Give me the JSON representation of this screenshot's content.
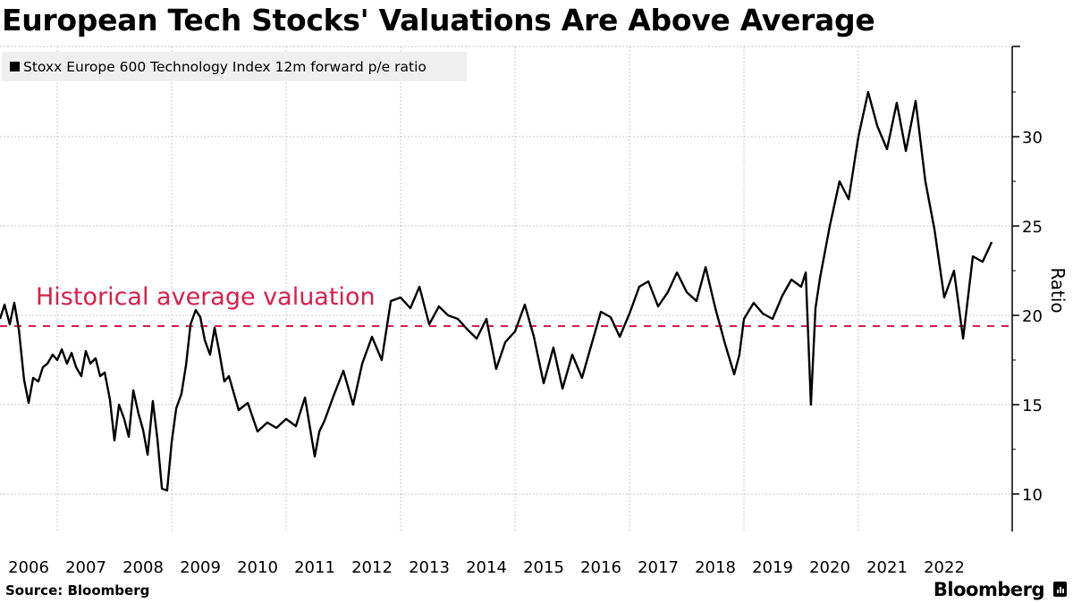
{
  "title": "European Tech Stocks' Valuations Are Above Average",
  "legend": {
    "label": "Stoxx Europe 600 Technology Index 12m forward p/e ratio",
    "swatch_color": "#000000"
  },
  "footer": {
    "source": "Source: Bloomberg",
    "brand": "Bloomberg",
    "brand_icon": "bloomberg-chart-icon"
  },
  "chart_data": {
    "type": "line",
    "title": "European Tech Stocks' Valuations Are Above Average",
    "xlabel": "",
    "ylabel": "Ratio",
    "xlim": [
      2006.0,
      2023.4
    ],
    "ylim": [
      8,
      33.5
    ],
    "y_ticks": [
      10,
      15,
      20,
      25,
      30
    ],
    "x_ticks": [
      "2006",
      "2007",
      "2008",
      "2009",
      "2010",
      "2011",
      "2012",
      "2013",
      "2014",
      "2015",
      "2016",
      "2017",
      "2018",
      "2019",
      "2020",
      "2021",
      "2022"
    ],
    "grid": true,
    "legend_position": "top-left",
    "line_color": "#000000",
    "annotations": [
      {
        "type": "hline",
        "y": 19.4,
        "style": "dashed",
        "color": "#d6204a",
        "label": "Historical average valuation"
      }
    ],
    "series": [
      {
        "name": "Stoxx Europe 600 Technology Index 12m forward p/e ratio",
        "x": [
          2006.0,
          2006.08,
          2006.17,
          2006.25,
          2006.33,
          2006.42,
          2006.5,
          2006.58,
          2006.67,
          2006.75,
          2006.83,
          2006.92,
          2007.0,
          2007.08,
          2007.17,
          2007.25,
          2007.33,
          2007.42,
          2007.5,
          2007.58,
          2007.67,
          2007.75,
          2007.83,
          2007.92,
          2008.0,
          2008.08,
          2008.17,
          2008.25,
          2008.33,
          2008.42,
          2008.5,
          2008.58,
          2008.67,
          2008.75,
          2008.83,
          2008.92,
          2009.0,
          2009.08,
          2009.17,
          2009.25,
          2009.33,
          2009.42,
          2009.5,
          2009.58,
          2009.67,
          2009.75,
          2009.83,
          2009.92,
          2010.0,
          2010.17,
          2010.33,
          2010.5,
          2010.67,
          2010.83,
          2011.0,
          2011.17,
          2011.33,
          2011.5,
          2011.58,
          2011.67,
          2011.83,
          2012.0,
          2012.17,
          2012.33,
          2012.5,
          2012.67,
          2012.83,
          2013.0,
          2013.17,
          2013.33,
          2013.5,
          2013.67,
          2013.83,
          2014.0,
          2014.17,
          2014.33,
          2014.5,
          2014.67,
          2014.83,
          2015.0,
          2015.17,
          2015.33,
          2015.5,
          2015.67,
          2015.83,
          2016.0,
          2016.17,
          2016.33,
          2016.5,
          2016.67,
          2016.83,
          2017.0,
          2017.17,
          2017.33,
          2017.5,
          2017.67,
          2017.83,
          2018.0,
          2018.17,
          2018.33,
          2018.5,
          2018.67,
          2018.83,
          2018.92,
          2019.0,
          2019.17,
          2019.33,
          2019.5,
          2019.67,
          2019.83,
          2020.0,
          2020.08,
          2020.17,
          2020.25,
          2020.33,
          2020.5,
          2020.67,
          2020.83,
          2021.0,
          2021.17,
          2021.33,
          2021.5,
          2021.67,
          2021.83,
          2022.0,
          2022.17,
          2022.33,
          2022.5,
          2022.67,
          2022.83,
          2023.0,
          2023.17,
          2023.33
        ],
        "y": [
          19.8,
          20.6,
          19.5,
          20.7,
          19.2,
          16.4,
          15.1,
          16.5,
          16.3,
          17.1,
          17.3,
          17.8,
          17.5,
          18.1,
          17.3,
          17.9,
          17.1,
          16.6,
          18.0,
          17.3,
          17.6,
          16.6,
          16.8,
          15.3,
          13.0,
          15.0,
          14.2,
          13.2,
          15.8,
          14.5,
          13.6,
          12.2,
          15.2,
          13.1,
          10.3,
          10.2,
          12.9,
          14.8,
          15.6,
          17.2,
          19.5,
          20.3,
          19.9,
          18.6,
          17.8,
          19.3,
          18.0,
          16.3,
          16.6,
          14.7,
          15.1,
          13.5,
          14.0,
          13.7,
          14.2,
          13.8,
          15.4,
          12.1,
          13.5,
          14.1,
          15.5,
          16.9,
          15.0,
          17.3,
          18.8,
          17.5,
          20.8,
          21.0,
          20.4,
          21.6,
          19.5,
          20.5,
          20.0,
          19.8,
          19.2,
          18.7,
          19.8,
          17.0,
          18.5,
          19.1,
          20.6,
          18.8,
          16.2,
          18.2,
          15.9,
          17.8,
          16.5,
          18.3,
          20.2,
          19.9,
          18.8,
          20.1,
          21.6,
          21.9,
          20.5,
          21.3,
          22.4,
          21.3,
          20.8,
          22.7,
          20.4,
          18.4,
          16.7,
          17.8,
          19.8,
          20.7,
          20.1,
          19.8,
          21.1,
          22.0,
          21.6,
          22.4,
          15.0,
          20.4,
          22.1,
          25.0,
          27.5,
          26.5,
          30.0,
          32.5,
          30.6,
          29.3,
          31.9,
          29.2,
          32.0,
          27.5,
          24.8,
          21.0,
          22.5,
          18.7,
          23.3,
          23.0,
          24.1
        ]
      }
    ]
  }
}
